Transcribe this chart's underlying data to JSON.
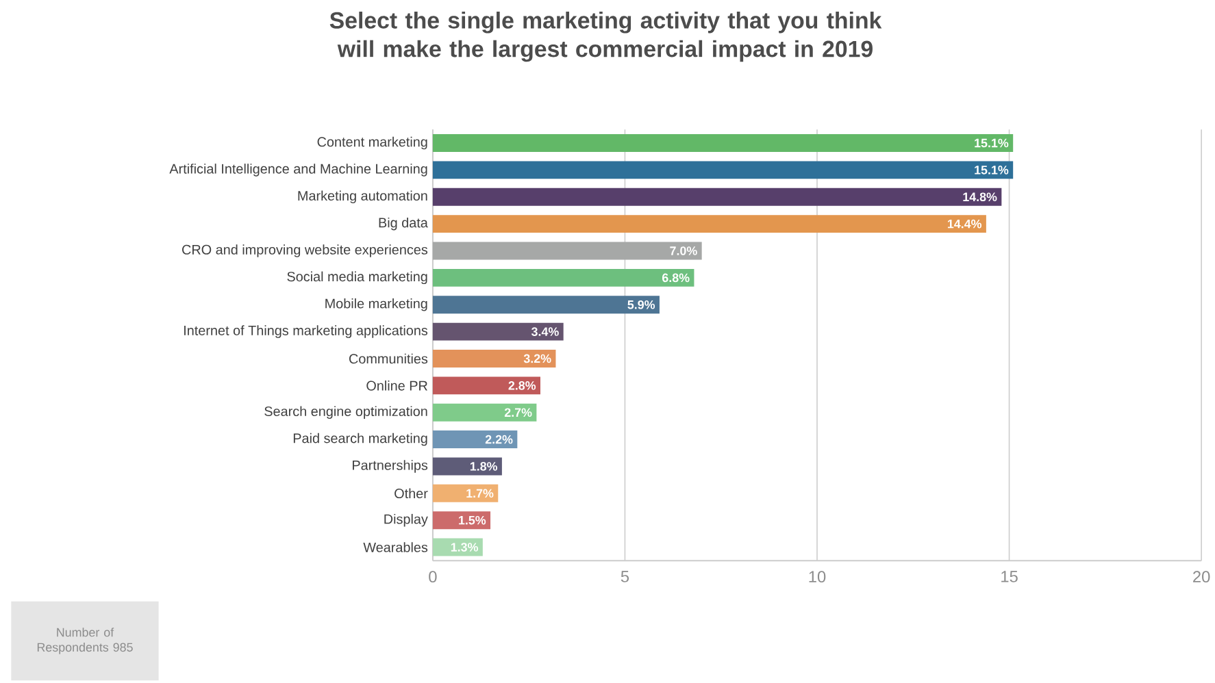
{
  "chart_data": {
    "type": "bar",
    "orientation": "horizontal",
    "title": "Select the single marketing activity that you think will make the largest commercial impact in 2019",
    "categories": [
      "Content marketing",
      "Artificial Intelligence and Machine Learning",
      "Marketing automation",
      "Big data",
      "CRO and improving website experiences",
      "Social media marketing",
      "Mobile marketing",
      "Internet of Things marketing applications",
      "Communities",
      "Online PR",
      "Search engine optimization",
      "Paid search marketing",
      "Partnerships",
      "Other",
      "Display",
      "Wearables"
    ],
    "values": [
      15.1,
      15.1,
      14.8,
      14.4,
      7.0,
      6.8,
      5.9,
      3.4,
      3.2,
      2.8,
      2.7,
      2.2,
      1.8,
      1.7,
      1.5,
      1.3
    ],
    "value_labels": [
      "15.1%",
      "15.1%",
      "14.8%",
      "14.4%",
      "7.0%",
      "6.8%",
      "5.9%",
      "3.4%",
      "3.2%",
      "2.8%",
      "2.7%",
      "2.2%",
      "1.8%",
      "1.7%",
      "1.5%",
      "1.3%"
    ],
    "colors": [
      "#62b867",
      "#2e7099",
      "#573f6b",
      "#e3964e",
      "#a6a8a7",
      "#6dbf7e",
      "#4e7594",
      "#65546f",
      "#e3925a",
      "#c05a5a",
      "#7fcb8a",
      "#6f95b5",
      "#5e5c78",
      "#f0b070",
      "#cc6b6b",
      "#a8dbb0"
    ],
    "xlim": [
      0,
      20
    ],
    "xticks": [
      0,
      5,
      10,
      15,
      20
    ],
    "grid": "x",
    "annotations": [
      "Number of Respondents 985"
    ]
  }
}
